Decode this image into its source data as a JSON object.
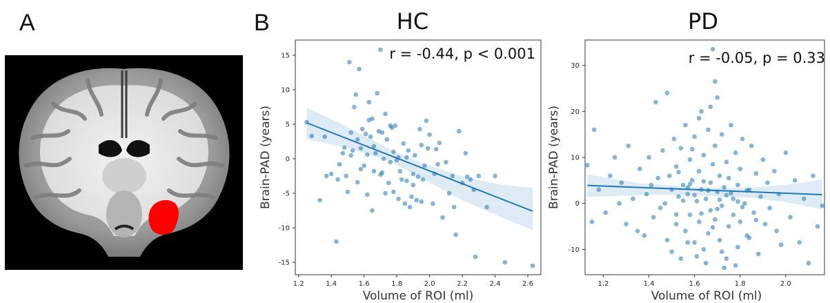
{
  "panel_labels": {
    "a": "A",
    "b": "B"
  },
  "brain": {
    "roi_color": "#ff0000"
  },
  "chart_data": [
    {
      "type": "scatter",
      "title": "HC",
      "xlabel": "Volume of ROI (ml)",
      "ylabel": "Brain-PAD (years)",
      "annotation": "r = -0.44, p < 0.001",
      "xlim": [
        1.18,
        2.68
      ],
      "ylim": [
        -16.8,
        17.2
      ],
      "xticks": [
        "1.2",
        "1.4",
        "1.6",
        "1.8",
        "2.0",
        "2.2",
        "2.4",
        "2.6"
      ],
      "yticks": [
        "-15",
        "-10",
        "-5",
        "0",
        "5",
        "10",
        "15"
      ],
      "color": "#1f77b4",
      "regression": {
        "x": [
          1.25,
          2.63
        ],
        "y": [
          5.2,
          -7.6
        ]
      },
      "ci_upper": [
        [
          1.25,
          7.4
        ],
        [
          1.5,
          4.6
        ],
        [
          1.75,
          1.5
        ],
        [
          1.95,
          -0.6
        ],
        [
          2.2,
          -2.6
        ],
        [
          2.45,
          -3.8
        ],
        [
          2.63,
          -4.2
        ]
      ],
      "ci_lower": [
        [
          1.25,
          2.8
        ],
        [
          1.5,
          1.6
        ],
        [
          1.75,
          -0.3
        ],
        [
          1.95,
          -2.8
        ],
        [
          2.2,
          -6.0
        ],
        [
          2.45,
          -8.6
        ],
        [
          2.63,
          -10.3
        ]
      ],
      "points": [
        [
          1.25,
          5.3
        ],
        [
          1.28,
          3.3
        ],
        [
          1.33,
          -6.0
        ],
        [
          1.36,
          3.2
        ],
        [
          1.37,
          -2.5
        ],
        [
          1.4,
          -2.2
        ],
        [
          1.43,
          -12.0
        ],
        [
          1.44,
          -3.0
        ],
        [
          1.45,
          -0.8
        ],
        [
          1.47,
          0.8
        ],
        [
          1.48,
          1.6
        ],
        [
          1.49,
          -2.5
        ],
        [
          1.5,
          -4.8
        ],
        [
          1.51,
          14.0
        ],
        [
          1.52,
          3.8
        ],
        [
          1.53,
          1.2
        ],
        [
          1.54,
          7.5
        ],
        [
          1.55,
          9.3
        ],
        [
          1.56,
          -3.4
        ],
        [
          1.57,
          13.0
        ],
        [
          1.58,
          1.5
        ],
        [
          1.59,
          4.3
        ],
        [
          1.6,
          -1.0
        ],
        [
          1.61,
          3.6
        ],
        [
          1.62,
          -5.2
        ],
        [
          1.63,
          8.2
        ],
        [
          1.64,
          3.2
        ],
        [
          1.65,
          5.8
        ],
        [
          1.65,
          -7.5
        ],
        [
          1.66,
          1.8
        ],
        [
          1.67,
          0.8
        ],
        [
          1.68,
          9.5
        ],
        [
          1.69,
          4.0
        ],
        [
          1.7,
          15.8
        ],
        [
          1.7,
          -2.3
        ],
        [
          1.71,
          -2.0
        ],
        [
          1.72,
          0.0
        ],
        [
          1.73,
          6.5
        ],
        [
          1.73,
          -5.0
        ],
        [
          1.74,
          2.8
        ],
        [
          1.75,
          -3.5
        ],
        [
          1.76,
          -0.5
        ],
        [
          1.77,
          4.5
        ],
        [
          1.78,
          -4.8
        ],
        [
          1.78,
          1.0
        ],
        [
          1.79,
          4.8
        ],
        [
          1.8,
          -0.2
        ],
        [
          1.81,
          0.2
        ],
        [
          1.82,
          -1.8
        ],
        [
          1.83,
          -3.0
        ],
        [
          1.84,
          2.2
        ],
        [
          1.85,
          -6.5
        ],
        [
          1.86,
          -3.2
        ],
        [
          1.87,
          1.2
        ],
        [
          1.88,
          -7.0
        ],
        [
          1.89,
          -5.5
        ],
        [
          1.9,
          -3.8
        ],
        [
          1.91,
          0.5
        ],
        [
          1.92,
          -6.0
        ],
        [
          1.93,
          -2.6
        ],
        [
          1.94,
          4.3
        ],
        [
          1.95,
          -6.2
        ],
        [
          1.96,
          -3.0
        ],
        [
          1.97,
          -1.0
        ],
        [
          1.98,
          5.5
        ],
        [
          1.99,
          1.5
        ],
        [
          2.0,
          3.5
        ],
        [
          2.02,
          -6.5
        ],
        [
          2.03,
          -2.2
        ],
        [
          2.05,
          -0.8
        ],
        [
          2.06,
          2.3
        ],
        [
          2.08,
          -8.5
        ],
        [
          2.1,
          -0.5
        ],
        [
          2.12,
          -5.0
        ],
        [
          2.14,
          -2.5
        ],
        [
          2.15,
          -7.0
        ],
        [
          2.16,
          -11.0
        ],
        [
          2.18,
          4.0
        ],
        [
          2.2,
          -3.5
        ],
        [
          2.22,
          0.8
        ],
        [
          2.23,
          -2.6
        ],
        [
          2.25,
          -3.0
        ],
        [
          2.27,
          -4.5
        ],
        [
          2.28,
          -14.2
        ],
        [
          2.3,
          -2.5
        ],
        [
          2.35,
          -7.0
        ],
        [
          2.4,
          -2.5
        ],
        [
          2.46,
          -15.0
        ],
        [
          2.63,
          -15.5
        ],
        [
          1.52,
          0.5
        ],
        [
          1.58,
          -1.5
        ],
        [
          1.63,
          5.6
        ],
        [
          1.66,
          -1.8
        ],
        [
          1.71,
          3.8
        ],
        [
          1.76,
          4.8
        ],
        [
          1.81,
          -5.8
        ],
        [
          1.86,
          0.2
        ],
        [
          1.9,
          -2.2
        ],
        [
          1.95,
          2.0
        ],
        [
          2.04,
          1.4
        ],
        [
          1.56,
          2.8
        ],
        [
          1.62,
          0.6
        ]
      ]
    },
    {
      "type": "scatter",
      "title": "PD",
      "xlabel": "Volume of ROI (ml)",
      "ylabel": "Brain-PAD (years)",
      "annotation": "r = -0.05, p = 0.33",
      "xlim": [
        1.12,
        2.17
      ],
      "ylim": [
        -15.5,
        35.5
      ],
      "xticks": [
        "1.2",
        "1.4",
        "1.6",
        "1.8",
        "2.0"
      ],
      "yticks": [
        "-10",
        "0",
        "10",
        "20",
        "30"
      ],
      "color": "#1f77b4",
      "regression": {
        "x": [
          1.13,
          2.16
        ],
        "y": [
          3.9,
          1.9
        ]
      },
      "ci_upper": [
        [
          1.13,
          6.3
        ],
        [
          1.35,
          4.4
        ],
        [
          1.6,
          3.6
        ],
        [
          1.85,
          3.4
        ],
        [
          2.0,
          4.0
        ],
        [
          2.16,
          5.2
        ]
      ],
      "ci_lower": [
        [
          1.13,
          1.4
        ],
        [
          1.35,
          1.8
        ],
        [
          1.6,
          1.8
        ],
        [
          1.85,
          1.2
        ],
        [
          2.0,
          0.3
        ],
        [
          2.16,
          -1.3
        ]
      ],
      "points": [
        [
          1.13,
          8.3
        ],
        [
          1.15,
          -4.0
        ],
        [
          1.16,
          16.0
        ],
        [
          1.18,
          3.0
        ],
        [
          1.21,
          -2.0
        ],
        [
          1.23,
          6.0
        ],
        [
          1.25,
          10.0
        ],
        [
          1.27,
          0.0
        ],
        [
          1.28,
          4.5
        ],
        [
          1.3,
          -4.5
        ],
        [
          1.31,
          12.5
        ],
        [
          1.33,
          1.0
        ],
        [
          1.35,
          -6.0
        ],
        [
          1.36,
          7.5
        ],
        [
          1.38,
          -7.0
        ],
        [
          1.39,
          2.0
        ],
        [
          1.4,
          10.0
        ],
        [
          1.41,
          4.0
        ],
        [
          1.42,
          -3.0
        ],
        [
          1.43,
          22.0
        ],
        [
          1.44,
          5.5
        ],
        [
          1.45,
          -1.0
        ],
        [
          1.46,
          11.5
        ],
        [
          1.47,
          0.0
        ],
        [
          1.48,
          24.0
        ],
        [
          1.48,
          -8.0
        ],
        [
          1.49,
          6.0
        ],
        [
          1.5,
          -10.5
        ],
        [
          1.5,
          3.0
        ],
        [
          1.51,
          14.0
        ],
        [
          1.52,
          -4.5
        ],
        [
          1.52,
          8.0
        ],
        [
          1.53,
          1.5
        ],
        [
          1.54,
          -12.0
        ],
        [
          1.54,
          12.0
        ],
        [
          1.55,
          4.0
        ],
        [
          1.56,
          -6.0
        ],
        [
          1.56,
          17.0
        ],
        [
          1.57,
          2.0
        ],
        [
          1.58,
          9.5
        ],
        [
          1.58,
          -2.5
        ],
        [
          1.59,
          5.0
        ],
        [
          1.6,
          -8.5
        ],
        [
          1.6,
          14.5
        ],
        [
          1.61,
          0.5
        ],
        [
          1.62,
          7.0
        ],
        [
          1.62,
          -4.0
        ],
        [
          1.63,
          20.0
        ],
        [
          1.63,
          3.0
        ],
        [
          1.64,
          -10.0
        ],
        [
          1.64,
          10.5
        ],
        [
          1.65,
          1.0
        ],
        [
          1.66,
          -6.5
        ],
        [
          1.66,
          16.0
        ],
        [
          1.67,
          4.5
        ],
        [
          1.67,
          -1.5
        ],
        [
          1.68,
          33.5
        ],
        [
          1.68,
          8.5
        ],
        [
          1.69,
          -3.5
        ],
        [
          1.69,
          12.5
        ],
        [
          1.7,
          2.5
        ],
        [
          1.7,
          23.0
        ],
        [
          1.71,
          -8.0
        ],
        [
          1.71,
          6.0
        ],
        [
          1.72,
          -0.5
        ],
        [
          1.72,
          15.0
        ],
        [
          1.73,
          3.5
        ],
        [
          1.74,
          -12.0
        ],
        [
          1.74,
          9.0
        ],
        [
          1.75,
          -5.0
        ],
        [
          1.75,
          5.5
        ],
        [
          1.76,
          17.0
        ],
        [
          1.77,
          1.0
        ],
        [
          1.77,
          -2.5
        ],
        [
          1.78,
          11.0
        ],
        [
          1.79,
          -9.5
        ],
        [
          1.79,
          4.0
        ],
        [
          1.8,
          -4.0
        ],
        [
          1.8,
          7.5
        ],
        [
          1.81,
          14.0
        ],
        [
          1.82,
          0.0
        ],
        [
          1.83,
          -7.0
        ],
        [
          1.84,
          3.0
        ],
        [
          1.85,
          12.5
        ],
        [
          1.86,
          -2.0
        ],
        [
          1.87,
          6.5
        ],
        [
          1.88,
          -11.0
        ],
        [
          1.89,
          1.5
        ],
        [
          1.9,
          9.5
        ],
        [
          1.91,
          -4.5
        ],
        [
          1.92,
          4.5
        ],
        [
          1.93,
          -1.0
        ],
        [
          1.95,
          7.0
        ],
        [
          1.96,
          -6.0
        ],
        [
          1.97,
          2.0
        ],
        [
          1.98,
          -9.0
        ],
        [
          2.0,
          11.0
        ],
        [
          2.02,
          -3.0
        ],
        [
          2.04,
          5.0
        ],
        [
          2.06,
          -8.5
        ],
        [
          2.08,
          1.0
        ],
        [
          2.1,
          -13.0
        ],
        [
          2.12,
          6.0
        ],
        [
          2.14,
          -5.0
        ],
        [
          2.16,
          -0.5
        ],
        [
          1.57,
          -8.5
        ],
        [
          1.61,
          -11.5
        ],
        [
          1.65,
          -13.0
        ],
        [
          1.73,
          -14.0
        ],
        [
          1.53,
          6.8
        ],
        [
          1.59,
          11.8
        ],
        [
          1.67,
          21.0
        ],
        [
          1.72,
          -10.5
        ],
        [
          1.78,
          -13.5
        ],
        [
          1.84,
          -7.5
        ],
        [
          1.62,
          18.5
        ],
        [
          1.69,
          26.5
        ],
        [
          1.81,
          -0.8
        ],
        [
          1.66,
          2.8
        ],
        [
          1.58,
          4.2
        ],
        [
          1.71,
          0.8
        ],
        [
          1.76,
          2.2
        ],
        [
          1.63,
          -2.2
        ],
        [
          1.68,
          -5.2
        ],
        [
          1.74,
          1.8
        ],
        [
          1.83,
          2.8
        ],
        [
          1.55,
          0.6
        ],
        [
          1.6,
          1.8
        ],
        [
          1.64,
          4.8
        ],
        [
          1.7,
          -1.2
        ],
        [
          1.79,
          0.4
        ],
        [
          1.87,
          -3.6
        ],
        [
          1.52,
          -2.4
        ],
        [
          1.57,
          3.4
        ]
      ]
    }
  ]
}
